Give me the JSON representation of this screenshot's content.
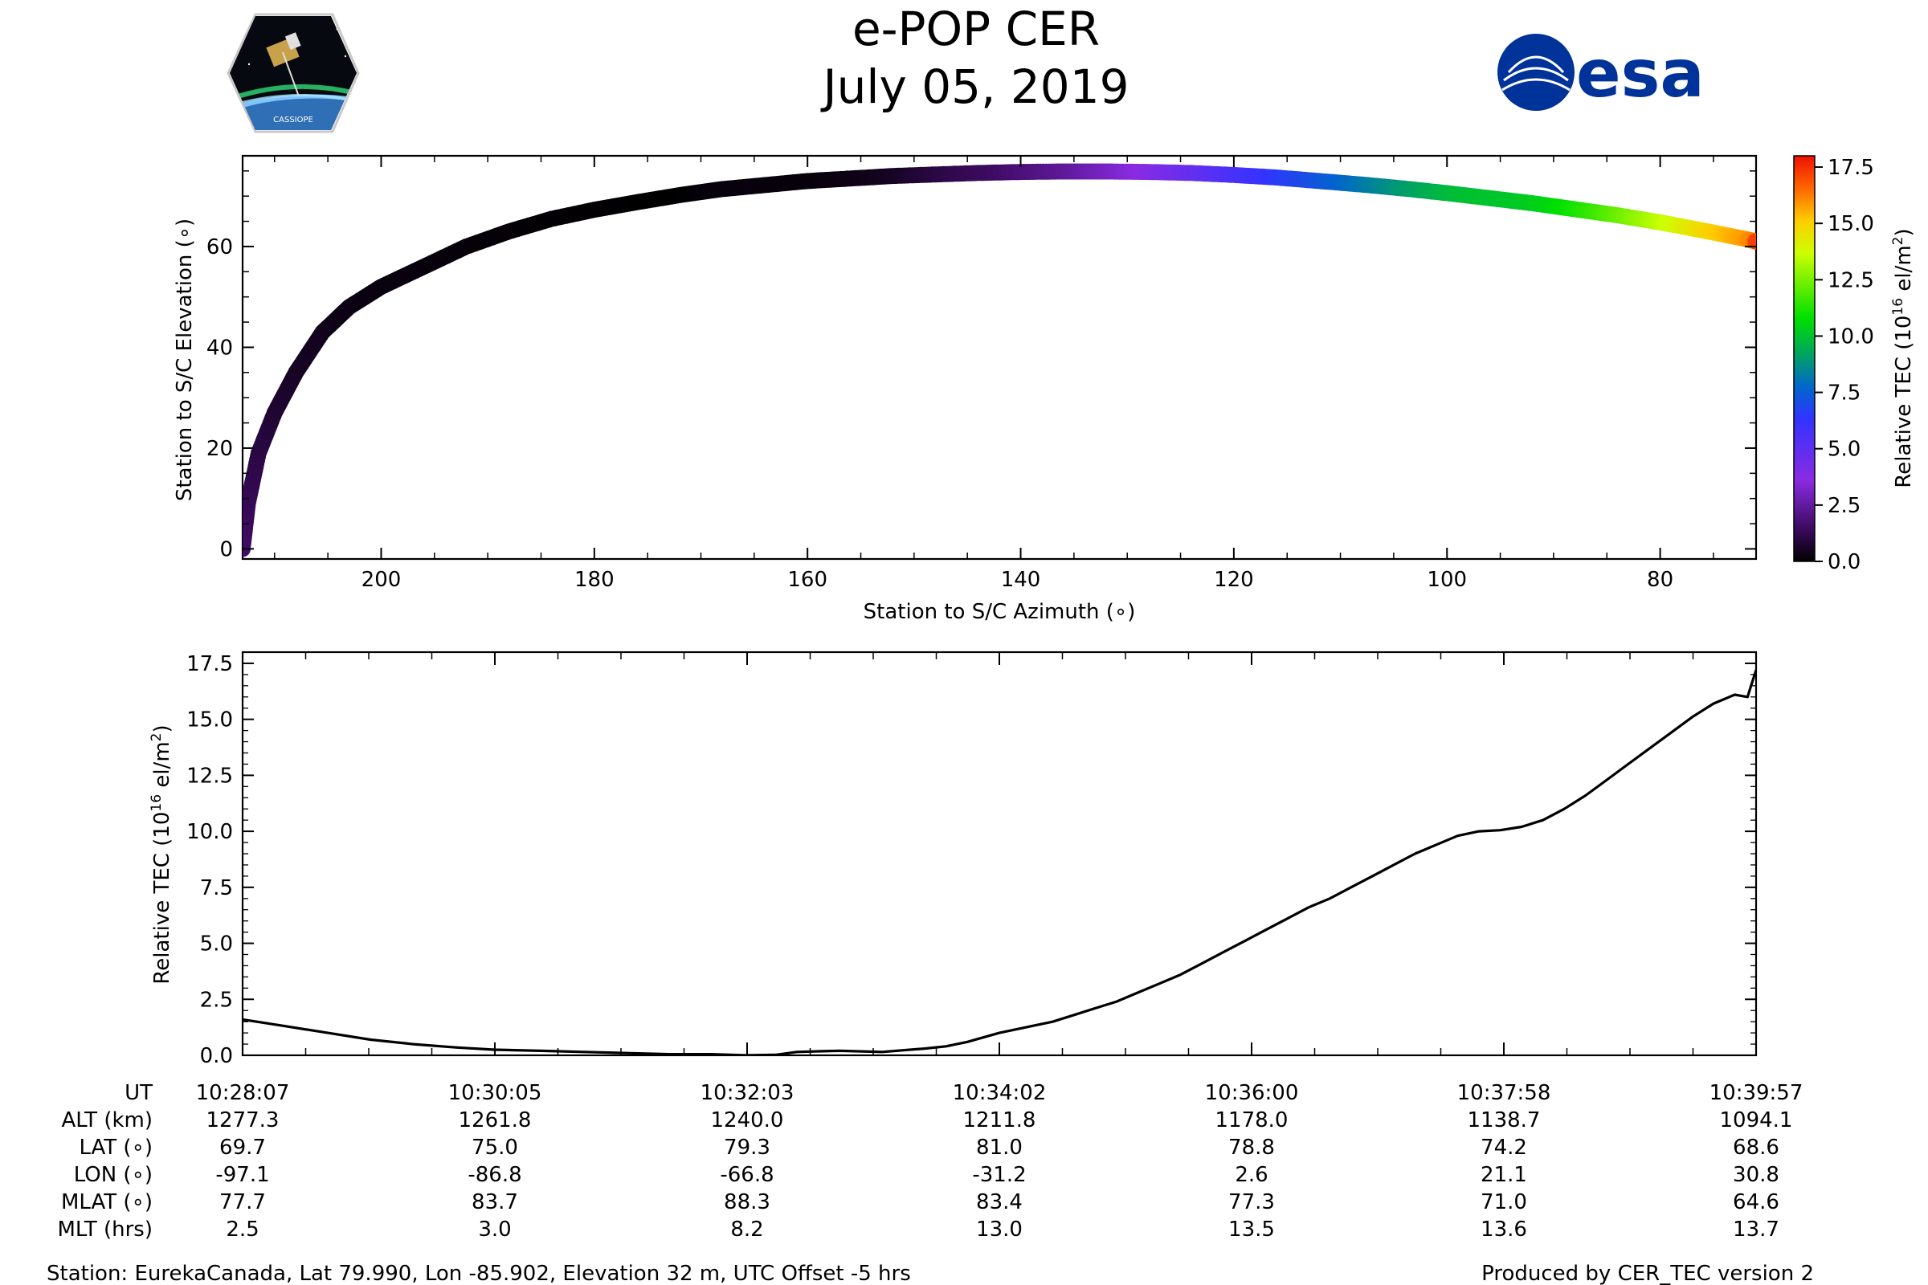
{
  "header": {
    "title": "e-POP CER",
    "date": "July 05, 2019",
    "left_logo": {
      "icon": "cassiope-mission-patch-icon",
      "text": "CASSIOPE"
    },
    "right_logo": {
      "icon": "esa-logo-icon",
      "text": "esa",
      "color": "#003399"
    }
  },
  "chart_data": [
    {
      "type": "scatter",
      "title": "",
      "xlabel": "Station to S/C Azimuth (∘)",
      "ylabel": "Station to S/C Elevation (∘)",
      "xlim": [
        213,
        71
      ],
      "ylim": [
        -2,
        78
      ],
      "xticks": [
        200,
        180,
        160,
        140,
        120,
        100,
        80
      ],
      "yticks": [
        0,
        20,
        40,
        60
      ],
      "color_by": "Relative TEC",
      "track": {
        "azimuth": [
          213,
          212.5,
          211.5,
          210,
          208,
          205.5,
          203,
          200,
          196,
          192,
          188,
          184,
          180,
          176,
          172,
          168,
          164,
          160,
          156,
          152,
          148,
          144,
          140,
          136,
          132,
          128,
          124,
          120,
          116,
          112,
          108,
          104,
          100,
          96,
          92,
          88,
          84,
          80,
          76,
          72,
          71
        ],
        "elevation": [
          0,
          9,
          19,
          27,
          35,
          43,
          48,
          52,
          56,
          60,
          63,
          65.5,
          67.3,
          68.8,
          70.2,
          71.4,
          72.2,
          73,
          73.5,
          74,
          74.3,
          74.6,
          74.8,
          74.9,
          74.9,
          74.8,
          74.6,
          74.2,
          73.7,
          73,
          72.3,
          71.5,
          70.6,
          69.6,
          68.6,
          67.4,
          66.2,
          64.8,
          63.2,
          61.5,
          61
        ]
      },
      "colorbar": {
        "label": "Relative TEC (10",
        "label_exp": "16",
        "label_unit": " el/m",
        "label_sup": "2",
        "label_end": ")",
        "range": [
          0,
          18
        ],
        "ticks": [
          "0.0",
          "2.5",
          "5.0",
          "7.5",
          "10.0",
          "12.5",
          "15.0",
          "17.5"
        ],
        "tick_values": [
          0,
          2.5,
          5,
          7.5,
          10,
          12.5,
          15,
          17.5
        ],
        "colormap": "nipy_spectral-like",
        "stops": [
          {
            "v": 0.0,
            "c": "#000000"
          },
          {
            "v": 0.08,
            "c": "#3b0a5e"
          },
          {
            "v": 0.2,
            "c": "#8a2be2"
          },
          {
            "v": 0.35,
            "c": "#3333ff"
          },
          {
            "v": 0.43,
            "c": "#0066cc"
          },
          {
            "v": 0.52,
            "c": "#00aa55"
          },
          {
            "v": 0.6,
            "c": "#00e000"
          },
          {
            "v": 0.68,
            "c": "#66ee00"
          },
          {
            "v": 0.76,
            "c": "#ccff00"
          },
          {
            "v": 0.84,
            "c": "#ffcc00"
          },
          {
            "v": 0.92,
            "c": "#ff6600"
          },
          {
            "v": 1.0,
            "c": "#ee1100"
          }
        ]
      }
    },
    {
      "type": "line",
      "title": "",
      "xlabel": "",
      "ylabel": "Relative TEC (10",
      "ylabel_exp": "16",
      "ylabel_unit": " el/m",
      "ylabel_sup": "2",
      "ylabel_end": ")",
      "xlim": [
        0,
        710
      ],
      "ylim": [
        0,
        18
      ],
      "yticks": [
        0,
        2.5,
        5,
        7.5,
        10,
        12.5,
        15,
        17.5
      ],
      "ytick_labels": [
        "0.0",
        "2.5",
        "5.0",
        "7.5",
        "10.0",
        "12.5",
        "15.0",
        "17.5"
      ],
      "x_seconds": [
        0,
        20,
        40,
        60,
        80,
        100,
        118,
        140,
        160,
        180,
        200,
        220,
        236,
        250,
        260,
        270,
        280,
        300,
        320,
        330,
        340,
        355,
        370,
        380,
        390,
        400,
        410,
        420,
        430,
        440,
        450,
        460,
        470,
        480,
        490,
        500,
        510,
        520,
        530,
        540,
        550,
        560,
        570,
        580,
        590,
        600,
        610,
        620,
        630,
        640,
        650,
        660,
        670,
        680,
        690,
        700,
        706,
        707,
        709,
        710
      ],
      "tec": [
        1.6,
        1.3,
        1.0,
        0.7,
        0.5,
        0.35,
        0.25,
        0.2,
        0.15,
        0.1,
        0.05,
        0.05,
        0.0,
        0.02,
        0.15,
        0.18,
        0.2,
        0.15,
        0.3,
        0.4,
        0.6,
        1.0,
        1.3,
        1.5,
        1.8,
        2.1,
        2.4,
        2.8,
        3.2,
        3.6,
        4.1,
        4.6,
        5.1,
        5.6,
        6.1,
        6.6,
        7.0,
        7.5,
        8.0,
        8.5,
        9.0,
        9.4,
        9.8,
        10.0,
        10.05,
        10.2,
        10.5,
        11.0,
        11.6,
        12.3,
        13.0,
        13.7,
        14.4,
        15.1,
        15.7,
        16.1,
        16.0,
        16.3,
        16.9,
        17.2
      ]
    }
  ],
  "ephemeris": {
    "row_labels": [
      "UT",
      "ALT (km)",
      "LAT (∘)",
      "LON (∘)",
      "MLAT (∘)",
      "MLT (hrs)"
    ],
    "columns": [
      {
        "UT": "10:28:07",
        "ALT": "1277.3",
        "LAT": "69.7",
        "LON": "-97.1",
        "MLAT": "77.7",
        "MLT": "2.5"
      },
      {
        "UT": "10:30:05",
        "ALT": "1261.8",
        "LAT": "75.0",
        "LON": "-86.8",
        "MLAT": "83.7",
        "MLT": "3.0"
      },
      {
        "UT": "10:32:03",
        "ALT": "1240.0",
        "LAT": "79.3",
        "LON": "-66.8",
        "MLAT": "88.3",
        "MLT": "8.2"
      },
      {
        "UT": "10:34:02",
        "ALT": "1211.8",
        "LAT": "81.0",
        "LON": "-31.2",
        "MLAT": "83.4",
        "MLT": "13.0"
      },
      {
        "UT": "10:36:00",
        "ALT": "1178.0",
        "LAT": "78.8",
        "LON": "2.6",
        "MLAT": "77.3",
        "MLT": "13.5"
      },
      {
        "UT": "10:37:58",
        "ALT": "1138.7",
        "LAT": "74.2",
        "LON": "21.1",
        "MLAT": "71.0",
        "MLT": "13.6"
      },
      {
        "UT": "10:39:57",
        "ALT": "1094.1",
        "LAT": "68.6",
        "LON": "30.8",
        "MLAT": "64.6",
        "MLT": "13.7"
      }
    ]
  },
  "footer": {
    "station": "Station: EurekaCanada, Lat 79.990, Lon -85.902, Elevation 32 m, UTC Offset -5 hrs",
    "produced_by": "Produced by CER_TEC version 2"
  }
}
